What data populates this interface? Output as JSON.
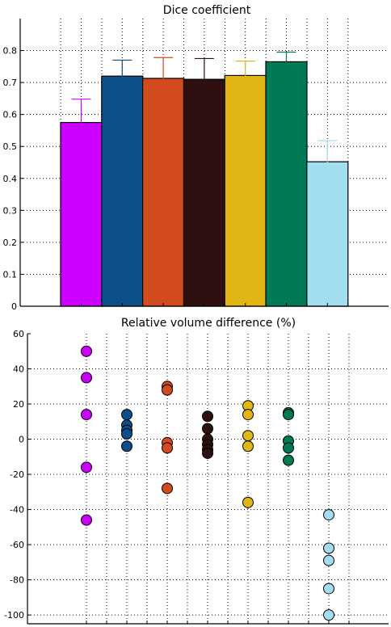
{
  "chart_data": [
    {
      "type": "bar",
      "title": "Dice coefficient",
      "xlabel": "",
      "ylabel": "",
      "ylim": [
        0,
        0.9
      ],
      "yticks": [
        0,
        0.1,
        0.2,
        0.3,
        0.4,
        0.5,
        0.6,
        0.7,
        0.8
      ],
      "ytick_labels": [
        "0",
        "0.1",
        "0.2",
        "0.3",
        "0.4",
        "0.5",
        "0.6",
        "0.7",
        "0.8"
      ],
      "grid": true,
      "bars": [
        {
          "value": 0.575,
          "err_low": 0.515,
          "err_high": 0.648,
          "color": "#cc00ff"
        },
        {
          "value": 0.72,
          "err_low": 0.67,
          "err_high": 0.77,
          "color": "#0d4f8b"
        },
        {
          "value": 0.713,
          "err_low": 0.633,
          "err_high": 0.778,
          "color": "#d24a1d"
        },
        {
          "value": 0.71,
          "err_low": 0.643,
          "err_high": 0.775,
          "color": "#2e1010"
        },
        {
          "value": 0.722,
          "err_low": 0.683,
          "err_high": 0.767,
          "color": "#e1b514"
        },
        {
          "value": 0.765,
          "err_low": 0.733,
          "err_high": 0.795,
          "color": "#007a55"
        },
        {
          "value": 0.452,
          "err_low": 0.393,
          "err_high": 0.518,
          "color": "#a3def0"
        }
      ]
    },
    {
      "type": "scatter",
      "title": "Relative volume difference (%)",
      "xlabel": "",
      "ylabel": "",
      "ylim": [
        -105,
        60
      ],
      "yticks": [
        -100,
        -80,
        -60,
        -40,
        -20,
        0,
        20,
        40,
        60
      ],
      "ytick_labels": [
        "-100",
        "-80",
        "-60",
        "-40",
        "-20",
        "0",
        "20",
        "40",
        "60"
      ],
      "grid": true,
      "groups": [
        {
          "color": "#cc00ff",
          "values": [
            50,
            35,
            14,
            -16,
            -46
          ]
        },
        {
          "color": "#0d4f8b",
          "values": [
            14,
            8,
            5,
            3,
            -4
          ]
        },
        {
          "color": "#d24a1d",
          "values": [
            30,
            28,
            -2,
            -5,
            -28
          ]
        },
        {
          "color": "#2e1010",
          "values": [
            13,
            6,
            0,
            -3,
            -6,
            -8
          ]
        },
        {
          "color": "#e1b514",
          "values": [
            19,
            14,
            2,
            -4,
            -36
          ]
        },
        {
          "color": "#007a55",
          "values": [
            15,
            14,
            -1,
            -5,
            -12
          ]
        },
        {
          "color": "#a3def0",
          "values": [
            -43,
            -62,
            -69,
            -85,
            -100
          ]
        }
      ]
    }
  ]
}
